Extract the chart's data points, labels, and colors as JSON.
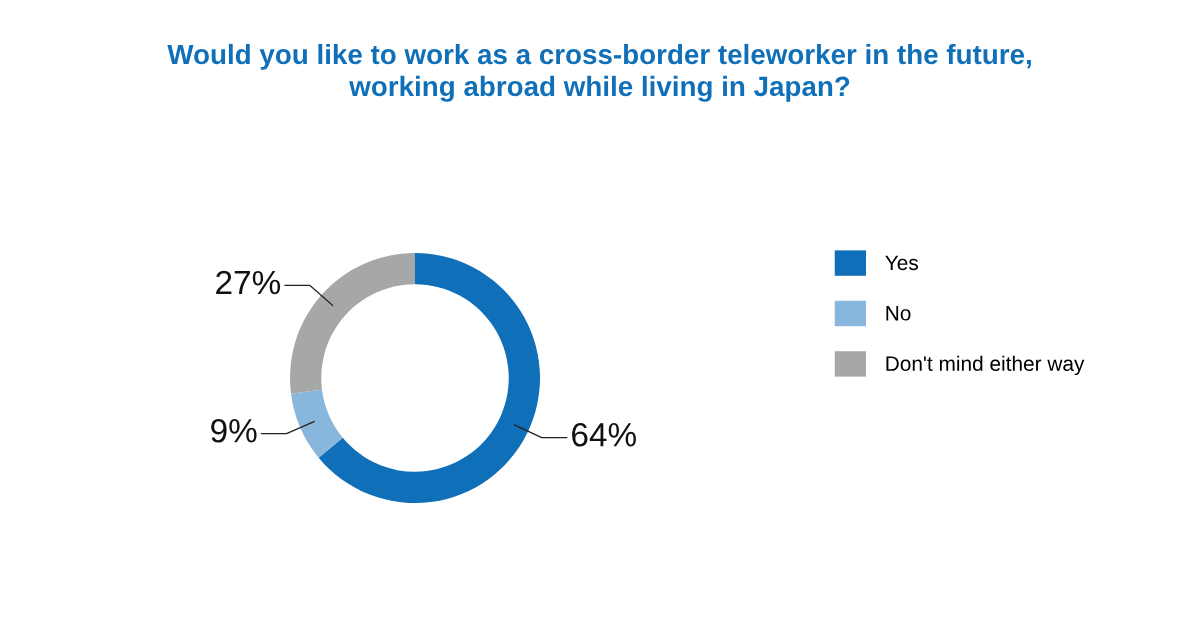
{
  "chart_data": {
    "type": "donut",
    "title": "Would you like to work as a cross-border teleworker in the future,\nworking abroad while living in Japan?",
    "categories": [
      "Yes",
      "No",
      "Don't mind either way"
    ],
    "values": [
      64,
      9,
      27
    ],
    "colors": [
      "#0f6fb8",
      "#89b6dc",
      "#a6a8a8"
    ],
    "value_labels": [
      "64%",
      "9%",
      "27%"
    ],
    "legend": "right"
  }
}
